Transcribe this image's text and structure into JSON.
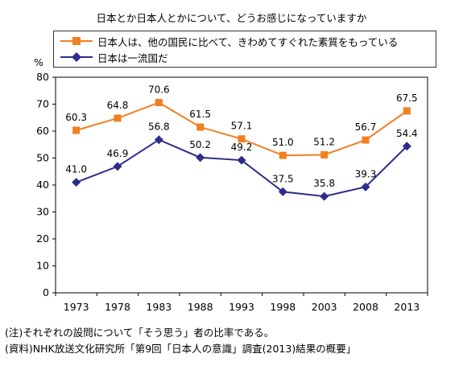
{
  "chart_data": {
    "type": "line",
    "title": "日本とか日本人とかについて、どうお感じになっていますか",
    "ylabel": "%",
    "xlabel": "",
    "ylim": [
      0,
      80
    ],
    "yticks": [
      0,
      10,
      20,
      30,
      40,
      50,
      60,
      70,
      80
    ],
    "x": [
      "1973",
      "1978",
      "1983",
      "1988",
      "1993",
      "1998",
      "2003",
      "2008",
      "2013"
    ],
    "grid": false,
    "legend_position": "top",
    "series": [
      {
        "name": "日本人は、他の国民に比べて、きわめてすぐれた素質をもっている",
        "color": "#f08020",
        "marker": "square",
        "values": [
          60.3,
          64.8,
          70.6,
          61.5,
          57.1,
          51.0,
          51.2,
          56.7,
          67.5
        ],
        "labels": [
          "60.3",
          "64.8",
          "70.6",
          "61.5",
          "57.1",
          "51.0",
          "51.2",
          "56.7",
          "67.5"
        ]
      },
      {
        "name": "日本は一流国だ",
        "color": "#2c2c8c",
        "marker": "diamond",
        "values": [
          41.0,
          46.9,
          56.8,
          50.2,
          49.2,
          37.5,
          35.8,
          39.3,
          54.4
        ],
        "labels": [
          "41.0",
          "46.9",
          "56.8",
          "50.2",
          "49.2",
          "37.5",
          "35.8",
          "39.3",
          "54.4"
        ]
      }
    ]
  },
  "notes": {
    "note1": "(注)それぞれの設問について「そう思う」者の比率である。",
    "note2": "(資料)NHK放送文化研究所「第9回「日本人の意識」調査(2013)結果の概要」"
  }
}
